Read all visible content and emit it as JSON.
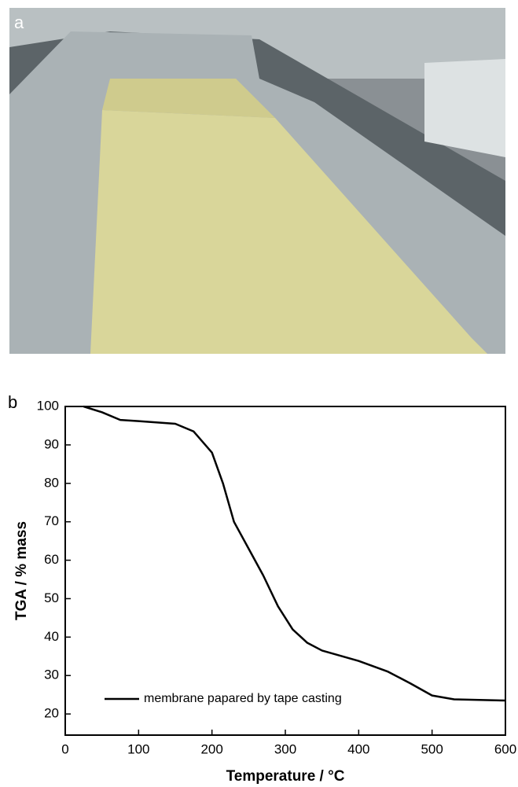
{
  "photo": {
    "label": "a"
  },
  "chart_data": {
    "type": "line",
    "panel_label": "b",
    "x_label": "Temperature / °C",
    "y_label": "TGA / % mass",
    "xlim": [
      0,
      600
    ],
    "xticks": [
      0,
      100,
      200,
      300,
      400,
      500,
      600
    ],
    "ylim": [
      14.5,
      100
    ],
    "yticks": [
      20,
      30,
      40,
      50,
      60,
      70,
      80,
      90,
      100
    ],
    "legend": "lower left",
    "x": [
      25,
      50,
      75,
      100,
      150,
      175,
      200,
      215,
      230,
      250,
      270,
      290,
      310,
      330,
      350,
      400,
      440,
      470,
      500,
      530,
      600
    ],
    "series": [
      {
        "name": "membrane papared by tape casting",
        "color": "#000000",
        "values": [
          100,
          98.5,
          96.5,
          96.2,
          95.5,
          93.5,
          88,
          80,
          70,
          63,
          56,
          48,
          42,
          38.5,
          36.5,
          33.8,
          31,
          28,
          24.8,
          23.8,
          23.5
        ]
      }
    ]
  }
}
